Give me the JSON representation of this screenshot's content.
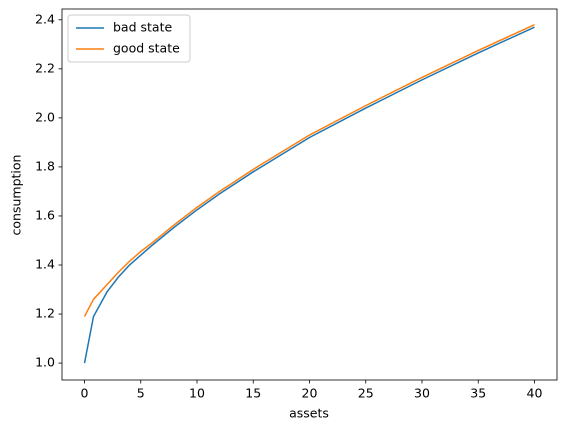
{
  "chart_data": {
    "type": "line",
    "x_label": "assets",
    "y_label": "consumption",
    "x": [
      0,
      0.8,
      2,
      3,
      4,
      5,
      6,
      8,
      10,
      12,
      15,
      20,
      25,
      30,
      35,
      40
    ],
    "series": [
      {
        "name": "bad state",
        "color": "#1f77b4",
        "values": [
          1.0,
          1.19,
          1.29,
          1.35,
          1.4,
          1.44,
          1.48,
          1.555,
          1.625,
          1.69,
          1.78,
          1.92,
          2.04,
          2.155,
          2.265,
          2.37
        ]
      },
      {
        "name": "good state",
        "color": "#ff7f0e",
        "values": [
          1.19,
          1.26,
          1.32,
          1.37,
          1.415,
          1.455,
          1.49,
          1.565,
          1.635,
          1.7,
          1.79,
          1.93,
          2.05,
          2.165,
          2.275,
          2.38
        ]
      }
    ],
    "xlim": [
      -2,
      42
    ],
    "ylim": [
      0.931,
      2.444
    ],
    "xticks": [
      0,
      5,
      10,
      15,
      20,
      25,
      30,
      35,
      40
    ],
    "yticks": [
      {
        "value": 1,
        "label": "1.0"
      },
      1.2,
      1.4,
      1.6,
      1.8,
      {
        "value": 2,
        "label": "2.0"
      },
      2.2,
      2.4
    ],
    "legend": "upper left",
    "grid": false
  }
}
